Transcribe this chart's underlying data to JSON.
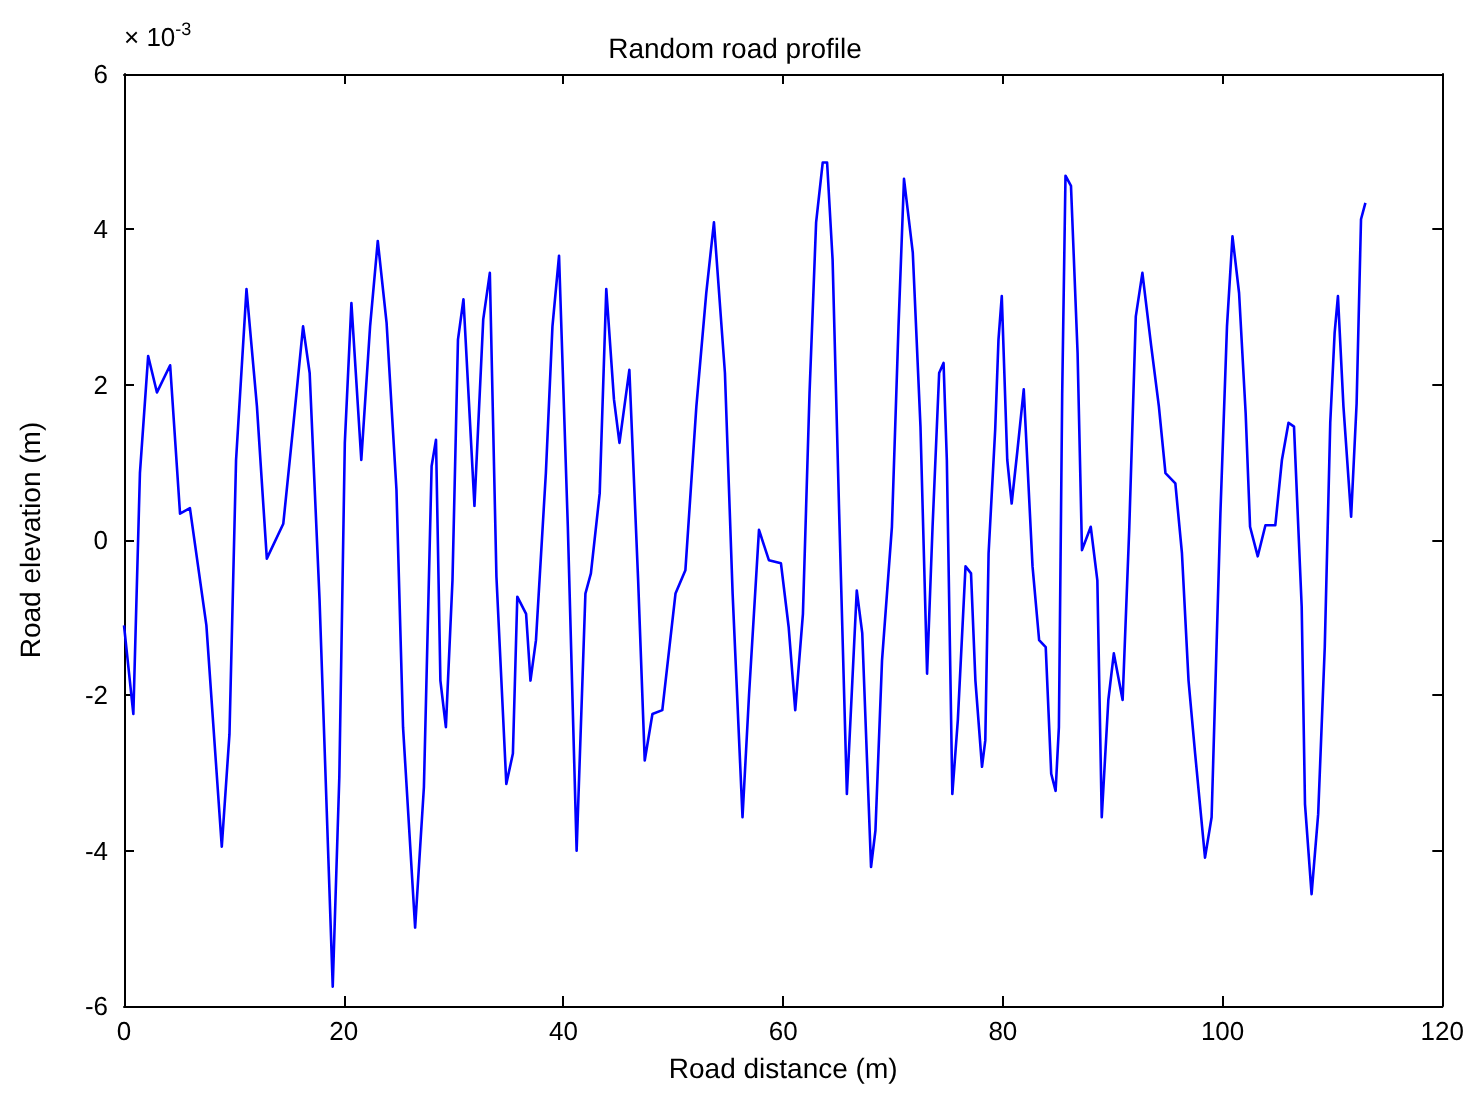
{
  "chart_data": {
    "type": "line",
    "title": "Random road profile",
    "xlabel": "Road distance (m)",
    "ylabel": "Road elevation (m)",
    "annotations": [
      "× 10$^{-3}$"
    ],
    "xlim": [
      0,
      120
    ],
    "xticks": [
      0,
      20,
      40,
      60,
      80,
      100,
      120
    ],
    "ylim": [
      -6,
      6
    ],
    "yticks": [
      -6,
      -4,
      -2,
      0,
      2,
      4,
      6
    ],
    "grid": false,
    "marker": "none",
    "line_style": "solid",
    "series": [
      {
        "color": "#0000ff",
        "x": [
          0,
          0.85,
          1.45,
          2.2,
          3.0,
          4.2,
          5.1,
          6.0,
          7.5,
          8.9,
          9.6,
          10.2,
          11.15,
          12.1,
          13.0,
          14.5,
          15.4,
          16.3,
          16.9,
          17.8,
          19.0,
          19.6,
          20.1,
          20.7,
          21.6,
          22.4,
          23.1,
          23.9,
          24.8,
          25.4,
          26.5,
          27.3,
          28.0,
          28.4,
          28.8,
          29.3,
          29.9,
          30.4,
          30.9,
          31.9,
          32.7,
          33.3,
          33.9,
          34.8,
          35.4,
          35.8,
          36.6,
          37.0,
          37.5,
          38.4,
          39.0,
          39.6,
          40.4,
          41.2,
          42.0,
          42.5,
          43.3,
          43.9,
          44.6,
          45.1,
          46.0,
          46.8,
          47.4,
          48.1,
          49.0,
          50.2,
          51.1,
          52.1,
          53.0,
          53.7,
          54.7,
          55.4,
          56.3,
          56.9,
          57.8,
          58.7,
          59.8,
          60.5,
          61.1,
          61.8,
          62.4,
          63.0,
          63.6,
          64.0,
          64.5,
          65.1,
          65.8,
          66.3,
          66.7,
          67.2,
          68.0,
          68.4,
          69.0,
          69.9,
          70.5,
          71.0,
          71.8,
          72.5,
          73.1,
          73.6,
          74.2,
          74.6,
          74.9,
          75.4,
          75.9,
          76.6,
          77.1,
          77.5,
          78.1,
          78.4,
          78.7,
          79.3,
          79.6,
          79.9,
          80.4,
          80.8,
          81.3,
          81.9,
          82.7,
          83.3,
          83.9,
          84.4,
          84.8,
          85.1,
          85.4,
          85.7,
          86.2,
          86.8,
          87.2,
          88.0,
          88.6,
          89.0,
          89.6,
          90.1,
          90.9,
          91.5,
          92.1,
          92.7,
          93.5,
          94.2,
          94.8,
          95.7,
          96.3,
          96.9,
          97.5,
          98.4,
          99.0,
          99.5,
          99.8,
          100.4,
          100.9,
          101.5,
          102.1,
          102.5,
          103.2,
          103.9,
          104.8,
          105.4,
          106.0,
          106.5,
          107.2,
          107.5,
          108.1,
          108.7,
          109.3,
          109.8,
          110.2,
          110.5,
          111.0,
          111.7,
          112.2,
          112.6,
          113.0
        ],
        "values": [
          -1.1,
          -2.24,
          0.86,
          2.37,
          1.9,
          2.25,
          0.34,
          0.41,
          -1.1,
          -3.95,
          -2.5,
          1.03,
          3.23,
          1.72,
          -0.24,
          0.21,
          1.46,
          2.75,
          2.15,
          -0.77,
          -5.75,
          -3.05,
          1.25,
          3.05,
          1.03,
          2.75,
          3.85,
          2.8,
          0.65,
          -2.41,
          -4.99,
          -3.18,
          0.95,
          1.29,
          -1.81,
          -2.41,
          -0.52,
          2.58,
          3.1,
          0.44,
          2.84,
          3.44,
          -0.47,
          -3.14,
          -2.75,
          -0.73,
          -0.95,
          -1.81,
          -1.29,
          0.86,
          2.75,
          3.66,
          0.17,
          -4.0,
          -0.69,
          -0.43,
          0.6,
          3.23,
          1.81,
          1.25,
          2.19,
          -0.52,
          -2.84,
          -2.24,
          -2.19,
          -0.69,
          -0.39,
          1.72,
          3.18,
          4.09,
          2.15,
          -0.69,
          -3.57,
          -1.98,
          0.13,
          -0.26,
          -0.3,
          -1.12,
          -2.19,
          -0.95,
          1.89,
          4.09,
          4.86,
          4.86,
          3.61,
          0.34,
          -3.27,
          -1.81,
          -0.65,
          -1.2,
          -4.21,
          -3.74,
          -1.55,
          0.17,
          2.75,
          4.65,
          3.7,
          1.46,
          -1.72,
          0.17,
          2.15,
          2.28,
          1.03,
          -3.27,
          -2.32,
          -0.34,
          -0.43,
          -1.81,
          -2.92,
          -2.58,
          -0.17,
          1.42,
          2.58,
          3.14,
          1.03,
          0.47,
          1.12,
          1.94,
          -0.34,
          -1.29,
          -1.38,
          -3.01,
          -3.23,
          -2.41,
          1.89,
          4.69,
          4.56,
          2.41,
          -0.13,
          0.17,
          -0.52,
          -3.57,
          -2.06,
          -1.46,
          -2.06,
          0.13,
          2.88,
          3.44,
          2.5,
          1.72,
          0.86,
          0.73,
          -0.17,
          -1.81,
          -2.75,
          -4.09,
          -3.57,
          -1.12,
          0.34,
          2.75,
          3.91,
          3.18,
          1.63,
          0.17,
          -0.21,
          0.19,
          0.19,
          1.03,
          1.51,
          1.46,
          -0.86,
          -3.4,
          -4.56,
          -3.53,
          -1.38,
          1.51,
          2.67,
          3.14,
          1.72,
          0.3,
          1.76,
          4.13,
          4.34
        ]
      }
    ]
  }
}
